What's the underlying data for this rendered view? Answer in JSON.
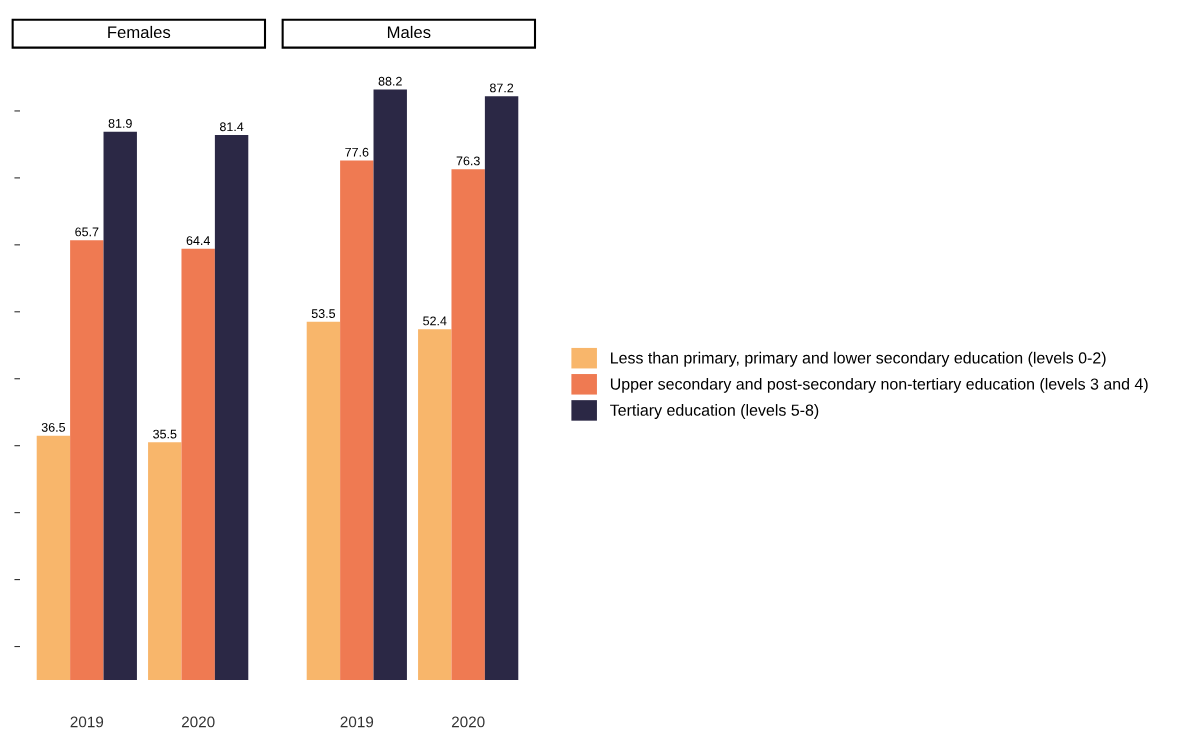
{
  "chart_data": [
    {
      "type": "bar",
      "title": "Females",
      "categories": [
        "2019",
        "2020"
      ],
      "yticks": [
        {
          "value": 5,
          "label": null
        },
        {
          "value": 15,
          "label": null
        },
        {
          "value": 25,
          "label": null
        },
        {
          "value": 35,
          "label": null
        },
        {
          "value": 45,
          "label": null
        },
        {
          "value": 55,
          "label": null
        },
        {
          "value": 65,
          "label": null
        },
        {
          "value": 75,
          "label": null
        },
        {
          "value": 85,
          "label": null
        }
      ],
      "data_labels": true,
      "grid": false,
      "legend": "right",
      "series": [
        {
          "name": "Less than primary, primary and lower secondary education (levels 0-2)",
          "color": "#f8b66b",
          "values": [
            36.5,
            35.5
          ]
        },
        {
          "name": "Upper secondary and post-secondary non-tertiary education (levels 3 and 4)",
          "color": "#ef7a52",
          "values": [
            65.7,
            64.4
          ]
        },
        {
          "name": "Tertiary education (levels 5-8)",
          "color": "#2b2845",
          "values": [
            81.9,
            81.4
          ]
        }
      ]
    },
    {
      "type": "bar",
      "title": "Males",
      "categories": [
        "2019",
        "2020"
      ],
      "data_labels": true,
      "grid": false,
      "series": [
        {
          "color": "#f8b66b",
          "values": [
            53.5,
            52.4
          ]
        },
        {
          "color": "#ef7a52",
          "values": [
            77.6,
            76.3
          ]
        },
        {
          "color": "#2b2845",
          "values": [
            88.2,
            87.2
          ]
        }
      ]
    }
  ]
}
